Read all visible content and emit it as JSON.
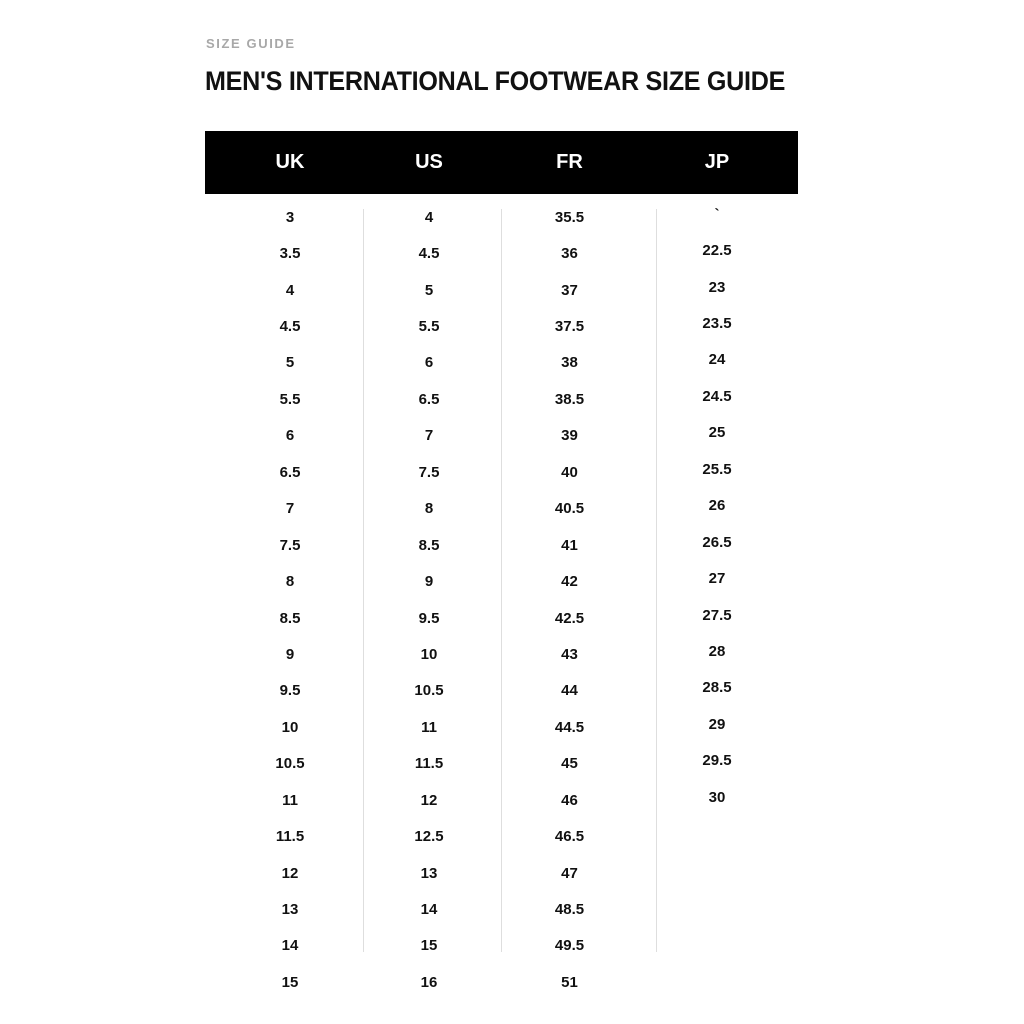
{
  "page": {
    "eyebrow": "SIZE GUIDE",
    "title": "MEN'S INTERNATIONAL FOOTWEAR SIZE GUIDE"
  },
  "table": {
    "columns": [
      {
        "key": "uk",
        "label": "UK"
      },
      {
        "key": "us",
        "label": "US"
      },
      {
        "key": "fr",
        "label": "FR"
      },
      {
        "key": "jp",
        "label": "JP"
      }
    ],
    "rows": [
      [
        "3",
        "4",
        "35.5",
        "`"
      ],
      [
        "3.5",
        "4.5",
        "36",
        "22.5"
      ],
      [
        "4",
        "5",
        "37",
        "23"
      ],
      [
        "4.5",
        "5.5",
        "37.5",
        "23.5"
      ],
      [
        "5",
        "6",
        "38",
        "24"
      ],
      [
        "5.5",
        "6.5",
        "38.5",
        "24.5"
      ],
      [
        "6",
        "7",
        "39",
        "25"
      ],
      [
        "6.5",
        "7.5",
        "40",
        "25.5"
      ],
      [
        "7",
        "8",
        "40.5",
        "26"
      ],
      [
        "7.5",
        "8.5",
        "41",
        "26.5"
      ],
      [
        "8",
        "9",
        "42",
        "27"
      ],
      [
        "8.5",
        "9.5",
        "42.5",
        "27.5"
      ],
      [
        "9",
        "10",
        "43",
        "28"
      ],
      [
        "9.5",
        "10.5",
        "44",
        "28.5"
      ],
      [
        "10",
        "11",
        "44.5",
        "29"
      ],
      [
        "10.5",
        "11.5",
        "45",
        "29.5"
      ],
      [
        "11",
        "12",
        "46",
        "30"
      ],
      [
        "11.5",
        "12.5",
        "46.5",
        ""
      ],
      [
        "12",
        "13",
        "47",
        ""
      ],
      [
        "13",
        "14",
        "48.5",
        ""
      ],
      [
        "14",
        "15",
        "49.5",
        ""
      ],
      [
        "15",
        "16",
        "51",
        ""
      ]
    ]
  },
  "colors": {
    "background": "#ffffff",
    "header_bar": "#000000",
    "header_text": "#ffffff",
    "eyebrow_text": "#a8a8a8",
    "title_text": "#111111",
    "cell_text": "#111111",
    "divider": "#dedede"
  }
}
